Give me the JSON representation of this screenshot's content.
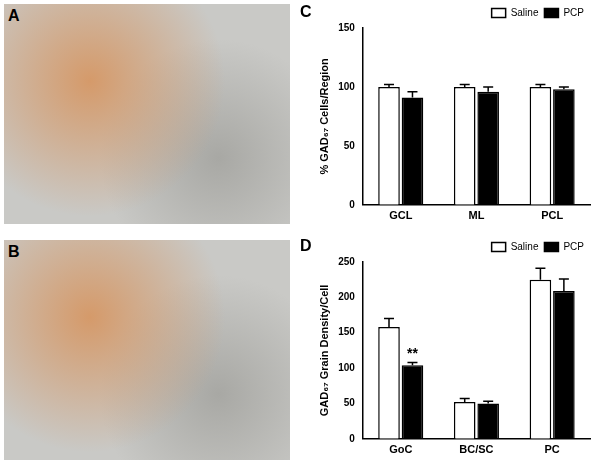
{
  "images": [
    {
      "panel": "A"
    },
    {
      "panel": "B"
    }
  ],
  "chart_data": [
    {
      "panel": "C",
      "type": "bar",
      "y_label": "% GAD₆₇ Cells/Region",
      "categories": [
        "GCL",
        "ML",
        "PCL"
      ],
      "series": [
        {
          "name": "Saline",
          "color": "#ffffff",
          "values": [
            100,
            100,
            100
          ],
          "errors": [
            2,
            2,
            2
          ]
        },
        {
          "name": "PCP",
          "color": "#000000",
          "values": [
            91,
            96,
            98
          ],
          "errors": [
            5,
            4,
            2
          ]
        }
      ],
      "ylim": [
        0,
        150
      ],
      "yticks": [
        0,
        50,
        100,
        150
      ],
      "grid": false,
      "legend": "upper right"
    },
    {
      "panel": "D",
      "type": "bar",
      "y_label": "GAD₆₇ Grain Density/Cell",
      "categories": [
        "GoC",
        "BC/SC",
        "PC"
      ],
      "series": [
        {
          "name": "Saline",
          "color": "#ffffff",
          "values": [
            158,
            52,
            225
          ],
          "errors": [
            12,
            5,
            16
          ]
        },
        {
          "name": "PCP",
          "color": "#000000",
          "values": [
            104,
            50,
            209
          ],
          "errors": [
            4,
            3,
            17
          ]
        }
      ],
      "ylim": [
        0,
        250
      ],
      "yticks": [
        0,
        50,
        100,
        150,
        200,
        250
      ],
      "grid": false,
      "legend": "upper right",
      "annotations": [
        {
          "text": "**",
          "category": "GoC",
          "series": "PCP"
        }
      ]
    }
  ]
}
